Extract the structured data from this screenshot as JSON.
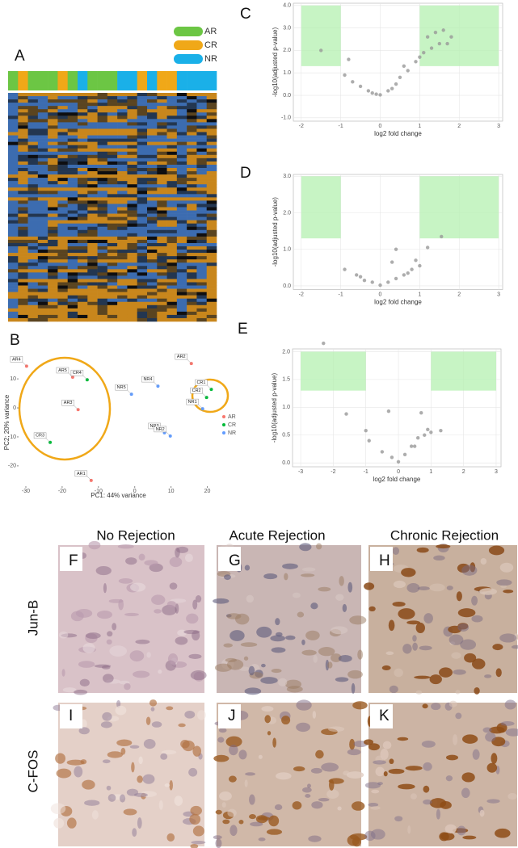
{
  "panels": {
    "letters": [
      "A",
      "B",
      "C",
      "D",
      "E",
      "F",
      "G",
      "H",
      "I",
      "J",
      "K"
    ],
    "columns": [
      "No Rejection",
      "Acute Rejection",
      "Chronic Rejection"
    ],
    "rows": [
      "Jun-B",
      "C-FOS"
    ]
  },
  "chart_data": [
    {
      "type": "heatmap",
      "series": [
        {
          "name": "AR",
          "color": "#6cc644"
        },
        {
          "name": "CR",
          "color": "#f0a818"
        },
        {
          "name": "NR",
          "color": "#1ab0e8"
        }
      ],
      "column_groups": [
        0,
        1,
        0,
        0,
        0,
        1,
        0,
        2,
        0,
        0,
        0,
        2,
        2,
        1,
        2,
        1,
        1,
        2,
        2,
        2,
        2
      ]
    },
    {
      "type": "scatter",
      "xlabel": "PC1: 44% variance",
      "ylabel": "PC2: 20% variance",
      "xlim": [
        -32,
        23
      ],
      "ylim": [
        -27,
        17
      ],
      "xticks": [
        -30,
        -20,
        -10,
        0,
        10,
        20
      ],
      "yticks": [
        -20,
        -10,
        0,
        10
      ],
      "series": [
        {
          "name": "AR",
          "color": "#f8766d",
          "labels": [
            "AR4",
            "AR5",
            "AR3",
            "AR1",
            "AR2"
          ],
          "x": [
            -29.8,
            -17.1,
            -15.6,
            -12,
            15.6
          ],
          "y": [
            14.4,
            10.6,
            -0.6,
            -25,
            15.3
          ]
        },
        {
          "name": "CR",
          "color": "#00ba38",
          "labels": [
            "CR4",
            "CR3",
            "CR1",
            "CR2"
          ],
          "x": [
            -13.1,
            -23.3,
            21.1,
            19.8
          ],
          "y": [
            9.7,
            -11.9,
            6.4,
            3.6
          ]
        },
        {
          "name": "NR",
          "color": "#619cff",
          "labels": [
            "NR5",
            "NR4",
            "NR3",
            "NR2",
            "NR1"
          ],
          "x": [
            -0.9,
            6.4,
            8.2,
            9.8,
            18.7
          ],
          "y": [
            4.7,
            7.5,
            -8.6,
            -9.7,
            -0.3
          ]
        }
      ]
    },
    {
      "type": "volcano",
      "xlabel": "log2 fold change",
      "ylabel": "-log10(adjusted p-value)",
      "xlim": [
        -2.2,
        3.1
      ],
      "ylim": [
        -1.15,
        4.1
      ],
      "xticks": [
        -2,
        -1,
        0,
        1,
        2,
        3
      ],
      "yticks": [
        {
          "value": -1,
          "label": "-1.0"
        },
        {
          "value": 0,
          "label": "0.0"
        },
        {
          "value": 1,
          "label": "1.0"
        },
        {
          "value": 2,
          "label": "2.0"
        },
        {
          "value": 3,
          "label": "3.0"
        },
        {
          "value": 4,
          "label": "4.0"
        }
      ],
      "regions": [
        {
          "x": [
            -2,
            -1
          ],
          "y": [
            1.3,
            4
          ]
        },
        {
          "x": [
            1,
            3
          ],
          "y": [
            1.3,
            4
          ]
        }
      ],
      "x": [
        -0.9,
        -0.7,
        -0.5,
        -0.3,
        -0.1,
        0,
        0.2,
        0.4,
        0.5,
        0.7,
        0.9,
        1.1,
        1.3,
        1.5,
        1.7,
        1.8,
        1.2,
        1.4,
        -1.5,
        -0.8,
        1.0,
        0.3,
        -0.2,
        0.6,
        1.6
      ],
      "y": [
        0.9,
        0.6,
        0.4,
        0.2,
        0.05,
        0.02,
        0.2,
        0.5,
        0.8,
        1.1,
        1.5,
        1.9,
        2.1,
        2.3,
        2.3,
        2.6,
        2.6,
        2.8,
        2.0,
        1.6,
        1.7,
        0.3,
        0.1,
        1.3,
        2.9
      ]
    },
    {
      "type": "volcano",
      "xlabel": "log2 fold change",
      "ylabel": "-log10(adjusted p-value)",
      "xlim": [
        -2.2,
        3.1
      ],
      "ylim": [
        -0.1,
        3.05
      ],
      "xticks": [
        -2,
        -1,
        0,
        1,
        2,
        3
      ],
      "yticks": [
        {
          "value": 0,
          "label": "0.0"
        },
        {
          "value": 1,
          "label": "1.0"
        },
        {
          "value": 2,
          "label": "2.0"
        },
        {
          "value": 3,
          "label": "3.0"
        }
      ],
      "regions": [
        {
          "x": [
            -2,
            -1
          ],
          "y": [
            1.3,
            3
          ]
        },
        {
          "x": [
            1,
            3
          ],
          "y": [
            1.3,
            3
          ]
        }
      ],
      "x": [
        -0.9,
        -0.5,
        -0.4,
        -0.2,
        0,
        0.2,
        0.4,
        0.6,
        0.8,
        1.0,
        0.3,
        0.4,
        0.9,
        1.2,
        1.55,
        0.7,
        -0.6
      ],
      "y": [
        0.45,
        0.25,
        0.15,
        0.1,
        0.02,
        0.1,
        0.2,
        0.3,
        0.45,
        0.55,
        0.65,
        1.0,
        0.7,
        1.05,
        1.35,
        0.35,
        0.3
      ]
    },
    {
      "type": "volcano",
      "xlabel": "log2 fold change",
      "ylabel": "-log10(adjusted p-value)",
      "xlim": [
        -3.25,
        3.15
      ],
      "ylim": [
        -0.07,
        2.05
      ],
      "xticks": [
        -3,
        -2,
        -1,
        0,
        1,
        2,
        3
      ],
      "yticks": [
        {
          "value": 0,
          "label": "0.0"
        },
        {
          "value": 0.5,
          "label": "0.5"
        },
        {
          "value": 1,
          "label": "1.0"
        },
        {
          "value": 1.5,
          "label": "1.5"
        },
        {
          "value": 2,
          "label": "2.0"
        }
      ],
      "regions": [
        {
          "x": [
            -3,
            -1
          ],
          "y": [
            1.3,
            2
          ]
        },
        {
          "x": [
            1,
            3
          ],
          "y": [
            1.3,
            2
          ]
        }
      ],
      "x": [
        -2.3,
        -1.6,
        -1.0,
        -0.9,
        -0.5,
        -0.2,
        0,
        0.2,
        0.4,
        0.6,
        0.7,
        0.9,
        1.0,
        1.3,
        0.5,
        -0.3,
        0.8
      ],
      "y": [
        2.15,
        0.88,
        0.58,
        0.4,
        0.2,
        0.1,
        0.02,
        0.15,
        0.3,
        0.45,
        0.9,
        0.6,
        0.55,
        0.58,
        0.3,
        0.93,
        0.5
      ]
    }
  ]
}
